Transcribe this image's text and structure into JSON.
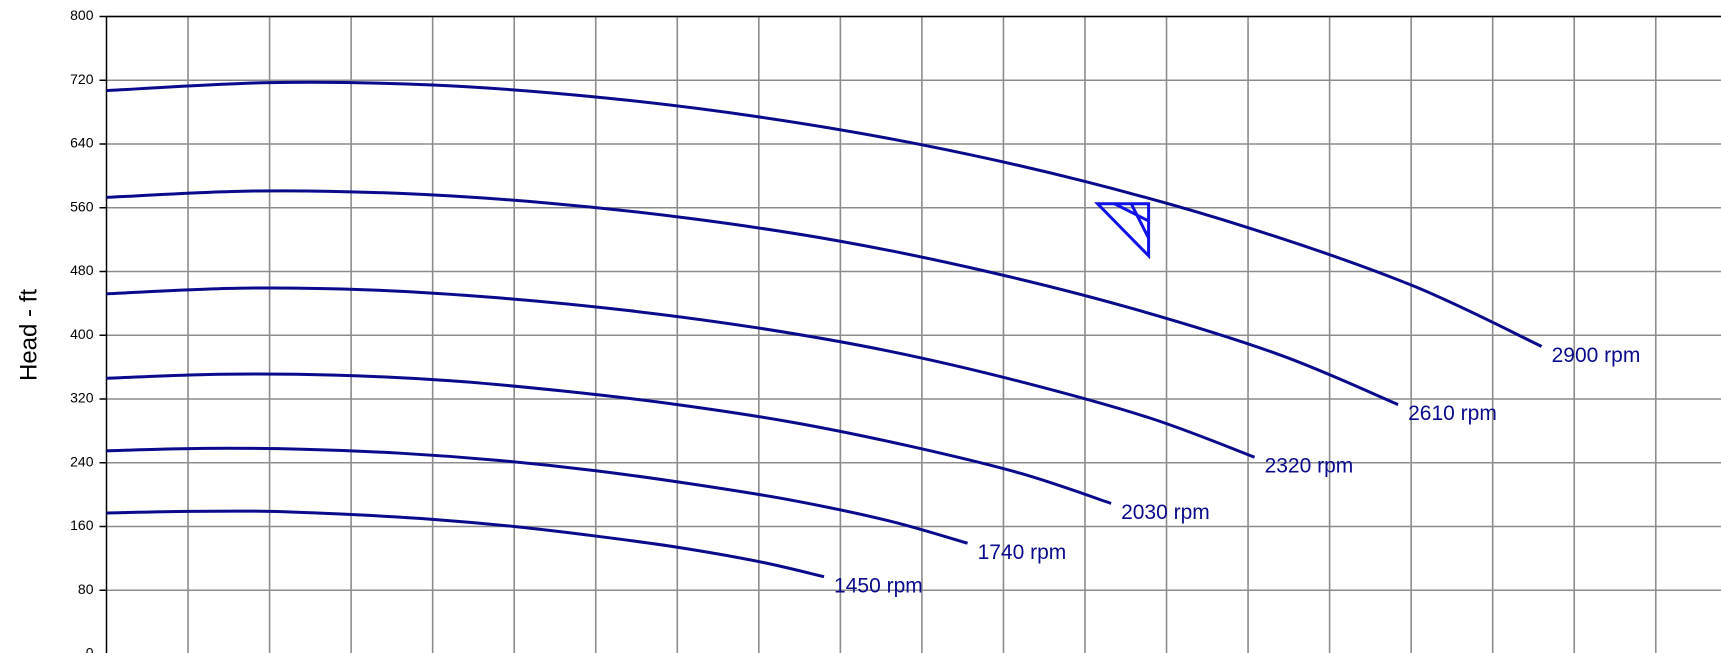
{
  "chart_data": {
    "type": "line",
    "y_label": "Head - ft",
    "xlim": [
      0,
      19.8
    ],
    "xticks": [
      1,
      2,
      3,
      4,
      5,
      6,
      7,
      8,
      9,
      10,
      11,
      12,
      13,
      14,
      15,
      16,
      17,
      18,
      19
    ],
    "ylim": [
      0,
      800
    ],
    "yticks": [
      0,
      80,
      160,
      240,
      320,
      400,
      480,
      560,
      640,
      720,
      800
    ],
    "grid": true,
    "color": "#0a0a8c",
    "series": [
      {
        "name": "2900 rpm",
        "x": [
          0,
          2,
          4,
          6,
          8,
          10,
          12,
          14,
          16,
          17.6
        ],
        "values": [
          707,
          717,
          714,
          699,
          674,
          639,
          593,
          535,
          463,
          386
        ]
      },
      {
        "name": "2610 rpm",
        "x": [
          0,
          1.8,
          3.6,
          5.4,
          7.2,
          9,
          10.8,
          12.6,
          14.4,
          15.84
        ],
        "values": [
          573,
          581,
          578,
          566,
          546,
          518,
          480,
          433,
          375,
          313
        ]
      },
      {
        "name": "2320 rpm",
        "x": [
          0,
          1.6,
          3.2,
          4.8,
          6.4,
          8,
          9.6,
          11.2,
          12.8,
          14.08
        ],
        "values": [
          452,
          459,
          457,
          447,
          431,
          409,
          380,
          342,
          296,
          247
        ]
      },
      {
        "name": "2030 rpm",
        "x": [
          0,
          1.4,
          2.8,
          4.2,
          5.6,
          7,
          8.4,
          9.8,
          11.2,
          12.32
        ],
        "values": [
          346,
          351,
          350,
          343,
          330,
          313,
          291,
          262,
          227,
          189
        ]
      },
      {
        "name": "1740 rpm",
        "x": [
          0,
          1.2,
          2.4,
          3.6,
          4.8,
          6,
          7.2,
          8.4,
          9.6,
          10.56
        ],
        "values": [
          255,
          258,
          257,
          252,
          243,
          230,
          213,
          193,
          167,
          139
        ]
      },
      {
        "name": "1450 rpm",
        "x": [
          0,
          1,
          2,
          3,
          4,
          5,
          6,
          7,
          8,
          8.8
        ],
        "values": [
          177,
          179,
          179,
          175,
          169,
          160,
          148,
          134,
          116,
          97
        ]
      }
    ],
    "operating_point": {
      "x": 12.78,
      "y": 565,
      "color": "#1010e8"
    }
  }
}
